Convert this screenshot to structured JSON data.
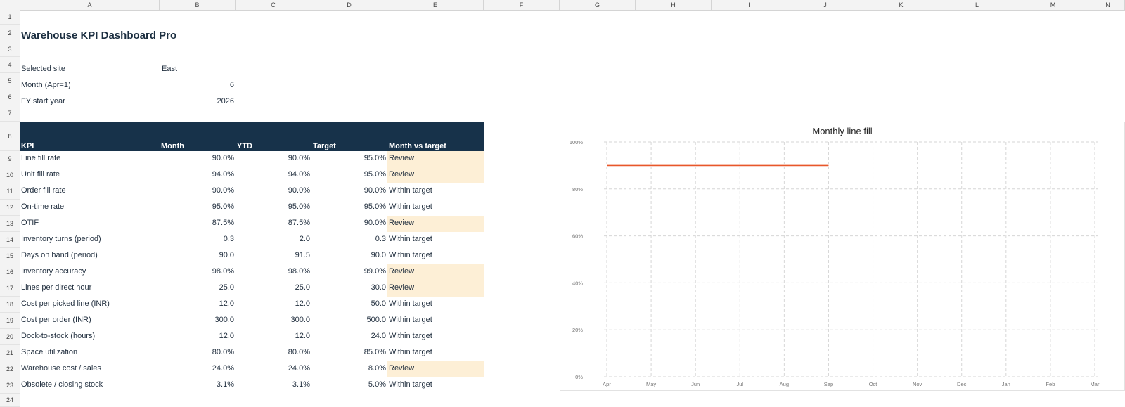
{
  "columns": [
    "A",
    "B",
    "C",
    "D",
    "E",
    "F",
    "G",
    "H",
    "I",
    "J",
    "K",
    "L",
    "M",
    "N"
  ],
  "rows": [
    "1",
    "2",
    "3",
    "4",
    "5",
    "6",
    "7",
    "8",
    "9",
    "10",
    "11",
    "12",
    "13",
    "14",
    "15",
    "16",
    "17",
    "18",
    "19",
    "20",
    "21",
    "22",
    "23",
    "24"
  ],
  "title": "Warehouse KPI Dashboard Pro",
  "params": [
    {
      "label": "Selected site",
      "value": "East"
    },
    {
      "label": "Month (Apr=1)",
      "value": "6"
    },
    {
      "label": "FY start year",
      "value": "2026"
    }
  ],
  "table": {
    "headers": [
      "KPI",
      "Month",
      "YTD",
      "Target",
      "Month vs target"
    ],
    "rows": [
      {
        "kpi": "Line fill rate",
        "month": "90.0%",
        "ytd": "90.0%",
        "target": "95.0%",
        "status": "Review"
      },
      {
        "kpi": "Unit fill rate",
        "month": "94.0%",
        "ytd": "94.0%",
        "target": "95.0%",
        "status": "Review"
      },
      {
        "kpi": "Order fill rate",
        "month": "90.0%",
        "ytd": "90.0%",
        "target": "90.0%",
        "status": "Within target"
      },
      {
        "kpi": "On-time rate",
        "month": "95.0%",
        "ytd": "95.0%",
        "target": "95.0%",
        "status": "Within target"
      },
      {
        "kpi": "OTIF",
        "month": "87.5%",
        "ytd": "87.5%",
        "target": "90.0%",
        "status": "Review"
      },
      {
        "kpi": "Inventory turns (period)",
        "month": "0.3",
        "ytd": "2.0",
        "target": "0.3",
        "status": "Within target"
      },
      {
        "kpi": "Days on hand (period)",
        "month": "90.0",
        "ytd": "91.5",
        "target": "90.0",
        "status": "Within target"
      },
      {
        "kpi": "Inventory accuracy",
        "month": "98.0%",
        "ytd": "98.0%",
        "target": "99.0%",
        "status": "Review"
      },
      {
        "kpi": "Lines per direct hour",
        "month": "25.0",
        "ytd": "25.0",
        "target": "30.0",
        "status": "Review"
      },
      {
        "kpi": "Cost per picked line (INR)",
        "month": "12.0",
        "ytd": "12.0",
        "target": "50.0",
        "status": "Within target"
      },
      {
        "kpi": "Cost per order (INR)",
        "month": "300.0",
        "ytd": "300.0",
        "target": "500.0",
        "status": "Within target"
      },
      {
        "kpi": "Dock-to-stock (hours)",
        "month": "12.0",
        "ytd": "12.0",
        "target": "24.0",
        "status": "Within target"
      },
      {
        "kpi": "Space utilization",
        "month": "80.0%",
        "ytd": "80.0%",
        "target": "85.0%",
        "status": "Within target"
      },
      {
        "kpi": "Warehouse cost / sales",
        "month": "24.0%",
        "ytd": "24.0%",
        "target": "8.0%",
        "status": "Review"
      },
      {
        "kpi": "Obsolete / closing stock",
        "month": "3.1%",
        "ytd": "3.1%",
        "target": "5.0%",
        "status": "Within target"
      }
    ]
  },
  "colors": {
    "header_band": "#17324a",
    "review_fill": "#fdefd6",
    "line": "#e8572a"
  },
  "chart_data": {
    "type": "line",
    "title": "Monthly line fill",
    "categories": [
      "Apr",
      "May",
      "Jun",
      "Jul",
      "Aug",
      "Sep",
      "Oct",
      "Nov",
      "Dec",
      "Jan",
      "Feb",
      "Mar"
    ],
    "series": [
      {
        "values": [
          0.9,
          0.9,
          0.9,
          0.9,
          0.9,
          0.9,
          null,
          null,
          null,
          null,
          null,
          null
        ]
      }
    ],
    "ylim": [
      0,
      1
    ],
    "yticks": [
      "0%",
      "20%",
      "40%",
      "60%",
      "80%",
      "100%"
    ],
    "grid": true
  }
}
